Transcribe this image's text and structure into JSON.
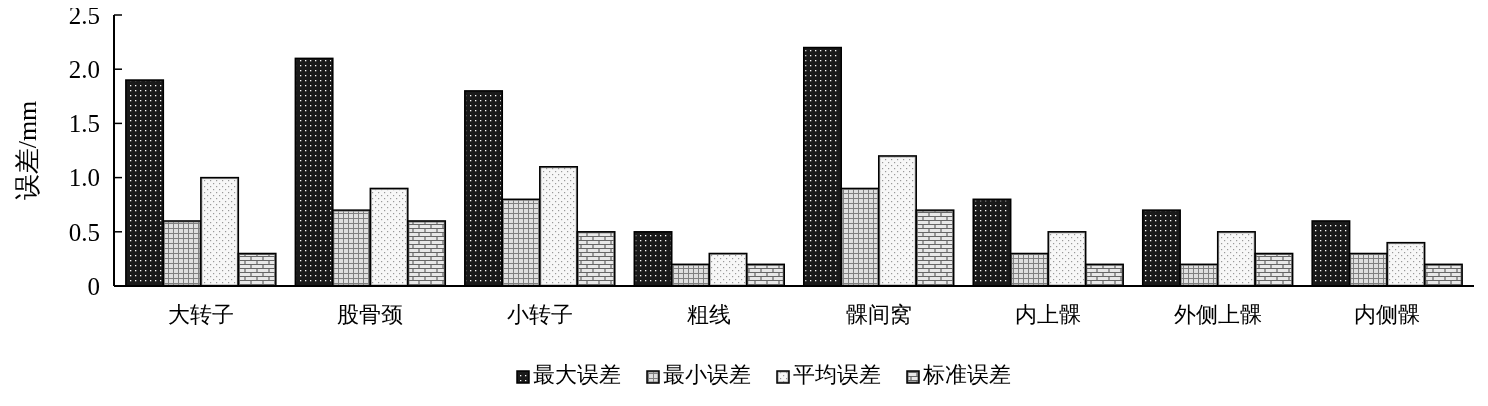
{
  "chart_data": {
    "type": "bar",
    "ylabel": "误差/mm",
    "categories": [
      "大转子",
      "股骨颈",
      "小转子",
      "粗线",
      "髁间窝",
      "内上髁",
      "外侧上髁",
      "内侧髁"
    ],
    "series": [
      {
        "name": "最大误差",
        "color": "#1a1a1a",
        "values": [
          1.9,
          2.1,
          1.8,
          0.5,
          2.2,
          0.8,
          0.7,
          0.6
        ]
      },
      {
        "name": "最小误差",
        "color": "#808080",
        "values": [
          0.6,
          0.7,
          0.8,
          0.2,
          0.9,
          0.3,
          0.2,
          0.3
        ]
      },
      {
        "name": "平均误差",
        "color": "#999999",
        "values": [
          1.0,
          0.9,
          1.1,
          0.3,
          1.2,
          0.5,
          0.5,
          0.4
        ]
      },
      {
        "name": "标准误差",
        "color": "#666666",
        "values": [
          0.3,
          0.6,
          0.5,
          0.2,
          0.7,
          0.2,
          0.3,
          0.2
        ]
      }
    ],
    "ylim": [
      0,
      2.5
    ],
    "yticks": [
      {
        "value": 0,
        "label": "0"
      },
      0.5,
      {
        "value": 1,
        "label": "1.0"
      },
      1.5,
      {
        "value": 2,
        "label": "2.0"
      },
      2.5
    ],
    "legend": "bottom",
    "grid": false
  }
}
